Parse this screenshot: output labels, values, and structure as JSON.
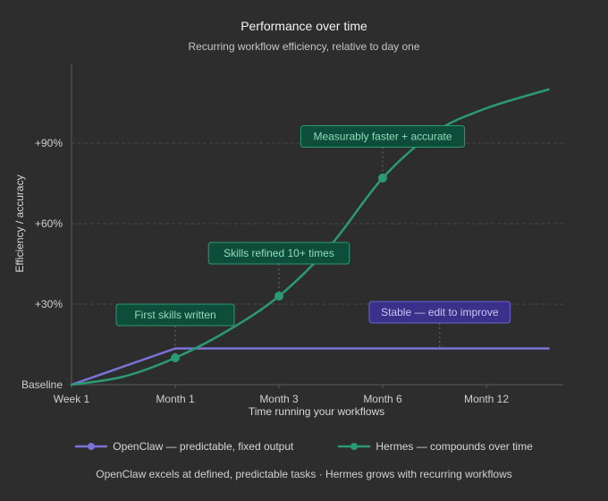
{
  "chart_data": {
    "type": "line",
    "title": "Performance over time",
    "subtitle": "Recurring workflow efficiency, relative to day one",
    "xlabel": "Time running your workflows",
    "ylabel": "Efficiency / accuracy",
    "x_ticks": [
      "Week 1",
      "Month 1",
      "Month 3",
      "Month 6",
      "Month 12"
    ],
    "x_range": [
      0,
      4.7
    ],
    "y_ticks": [
      {
        "value": 0,
        "label": "Baseline"
      },
      {
        "value": 30,
        "label": "+30%"
      },
      {
        "value": 60,
        "label": "+60%"
      },
      {
        "value": 90,
        "label": "+90%"
      }
    ],
    "ylim": [
      0,
      120
    ],
    "grid": "horizontal dashed",
    "legend_position": "bottom",
    "series": [
      {
        "name": "OpenClaw — predictable, fixed output",
        "color": "#7b73d6",
        "x": [
          0,
          1,
          4.6
        ],
        "y": [
          0,
          13.5,
          13.5
        ]
      },
      {
        "name": "Hermes — compounds over time",
        "color": "#2a9a72",
        "x": [
          0,
          0.5,
          1,
          1.5,
          2,
          2.5,
          3,
          3.5,
          4,
          4.6
        ],
        "y": [
          0,
          3,
          10,
          20,
          33,
          52,
          77,
          94,
          103,
          110
        ],
        "markers": [
          {
            "x": 1,
            "y": 10
          },
          {
            "x": 2,
            "y": 33
          },
          {
            "x": 3,
            "y": 77
          }
        ]
      }
    ],
    "annotations": [
      {
        "text": "First skills written",
        "x": 1,
        "y": 10,
        "label_y": 26,
        "color": "#2a9a72"
      },
      {
        "text": "Skills refined 10+ times",
        "x": 2,
        "y": 33,
        "label_y": 49,
        "color": "#2a9a72"
      },
      {
        "text": "Measurably faster + accurate",
        "x": 3,
        "y": 77,
        "label_y": 92.5,
        "color": "#2a9a72"
      },
      {
        "text": "Stable — edit to improve",
        "x": 3.55,
        "y": 13.5,
        "label_y": 27,
        "color": "#7b73d6"
      }
    ],
    "footer": "OpenClaw excels at defined, predictable tasks · Hermes grows with recurring workflows"
  }
}
